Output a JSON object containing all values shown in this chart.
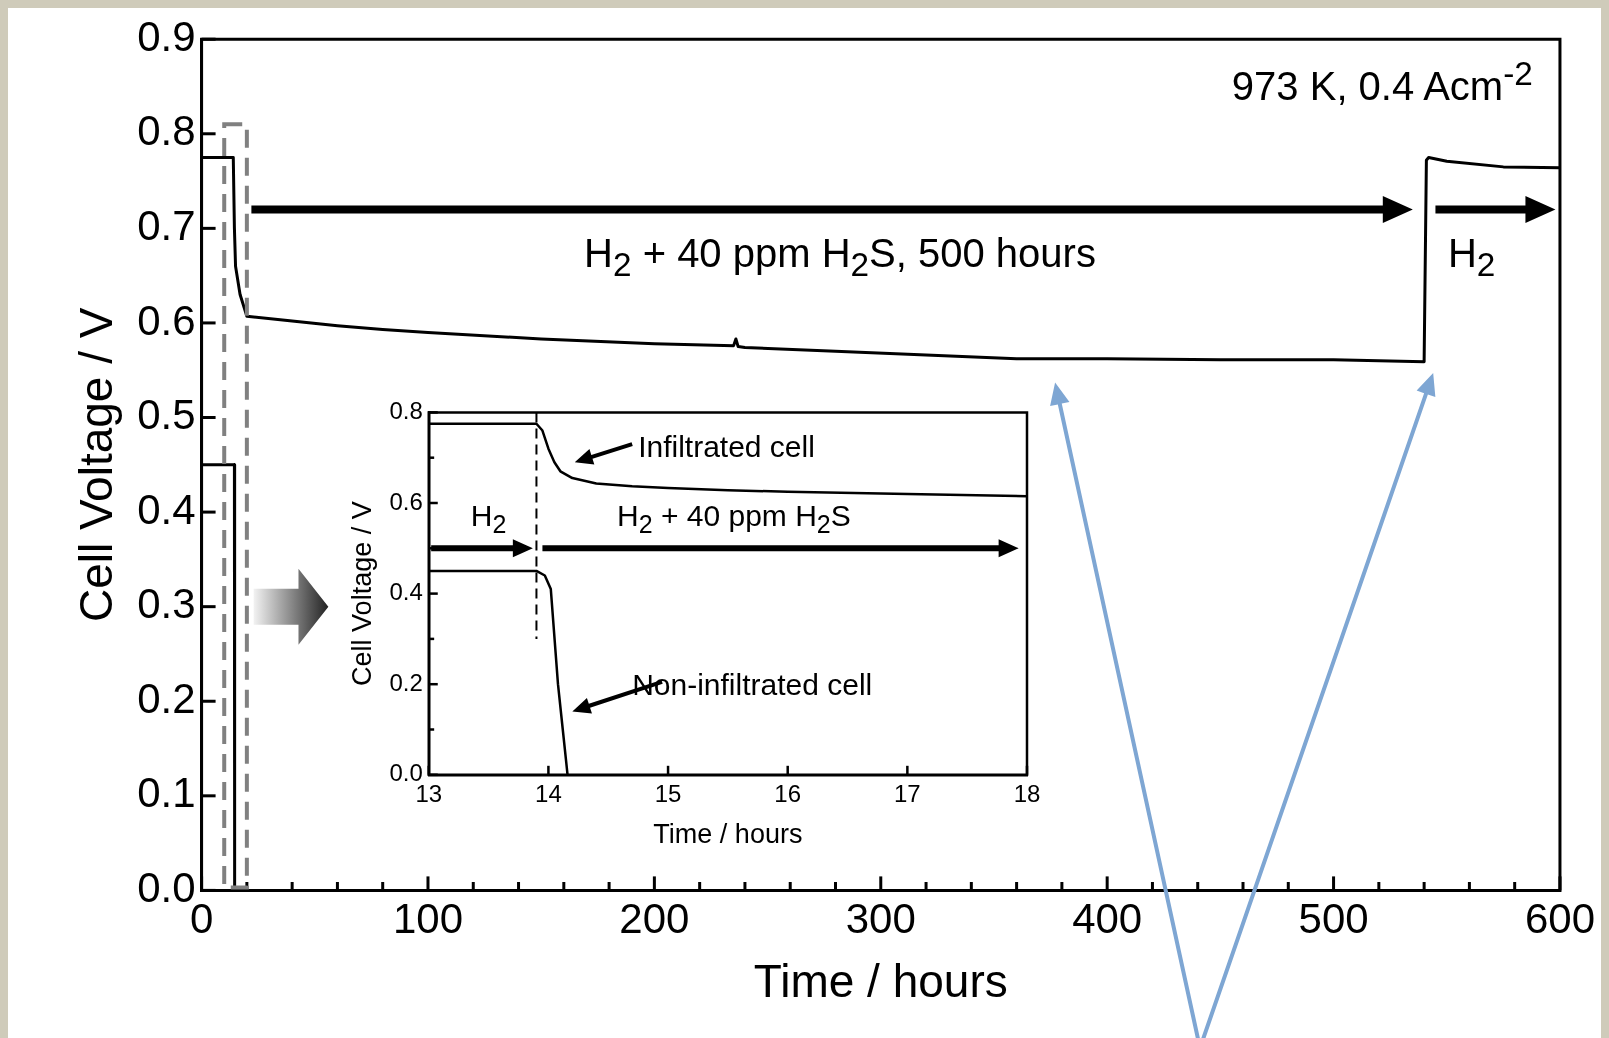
{
  "chart_data": [
    {
      "type": "line",
      "xlabel": "Time / hours",
      "ylabel": "Cell Voltage / V",
      "xlim": [
        0,
        600
      ],
      "ylim": [
        0,
        0.9
      ],
      "xticks": [
        0,
        {
          "value": 20,
          "label": null
        },
        {
          "value": 40,
          "label": null
        },
        {
          "value": 60,
          "label": null
        },
        {
          "value": 80,
          "label": null
        },
        100,
        {
          "value": 120,
          "label": null
        },
        {
          "value": 140,
          "label": null
        },
        {
          "value": 160,
          "label": null
        },
        {
          "value": 180,
          "label": null
        },
        200,
        {
          "value": 220,
          "label": null
        },
        {
          "value": 240,
          "label": null
        },
        {
          "value": 260,
          "label": null
        },
        {
          "value": 280,
          "label": null
        },
        300,
        {
          "value": 320,
          "label": null
        },
        {
          "value": 340,
          "label": null
        },
        {
          "value": 360,
          "label": null
        },
        {
          "value": 380,
          "label": null
        },
        400,
        {
          "value": 420,
          "label": null
        },
        {
          "value": 440,
          "label": null
        },
        {
          "value": 460,
          "label": null
        },
        {
          "value": 480,
          "label": null
        },
        500,
        {
          "value": 520,
          "label": null
        },
        {
          "value": 540,
          "label": null
        },
        {
          "value": 560,
          "label": null
        },
        {
          "value": 580,
          "label": null
        },
        600
      ],
      "yticks": [
        {
          "value": 0,
          "label": "0.0"
        },
        0.1,
        0.2,
        0.3,
        0.4,
        0.5,
        0.6,
        0.7,
        0.8,
        0.9
      ],
      "series": [
        {
          "color": "#000000",
          "x": [
            0,
            14,
            14.5,
            15,
            17,
            20,
            40,
            60,
            80,
            100,
            150,
            200,
            235,
            236,
            237,
            240,
            280,
            320,
            360,
            400,
            450,
            500,
            540,
            541,
            542,
            550,
            575,
            600
          ],
          "values": [
            0.775,
            0.775,
            0.7,
            0.66,
            0.63,
            0.607,
            0.602,
            0.597,
            0.593,
            0.59,
            0.583,
            0.578,
            0.576,
            0.583,
            0.575,
            0.574,
            0.57,
            0.566,
            0.562,
            0.562,
            0.561,
            0.561,
            0.559,
            0.772,
            0.775,
            0.771,
            0.765,
            0.764
          ]
        },
        {
          "color": "#000000",
          "x": [
            0,
            14.5,
            14.6
          ],
          "values": [
            0.45,
            0.45,
            0
          ]
        }
      ],
      "annotations": [
        "973 K, 0.4 Acm$^{-2}$",
        "H$_{2}$ + 40 ppm H$_{2}$S, 500 hours",
        "H$_{2}$"
      ],
      "legend": false,
      "grid": false,
      "marker": "none",
      "line_style": "solid"
    },
    {
      "type": "line",
      "xlabel": "Time / hours",
      "ylabel": "Cell Voltage / V",
      "xlim": [
        13,
        18
      ],
      "ylim": [
        0,
        0.8
      ],
      "xticks": [
        13,
        14,
        15,
        16,
        17,
        18
      ],
      "yticks": [
        {
          "value": 0,
          "label": "0.0"
        },
        {
          "value": 0.1,
          "label": null
        },
        0.2,
        {
          "value": 0.3,
          "label": null
        },
        0.4,
        {
          "value": 0.5,
          "label": null
        },
        0.6,
        {
          "value": 0.7,
          "label": null
        },
        0.8
      ],
      "series": [
        {
          "color": "#000000",
          "x": [
            13,
            13.9,
            13.95,
            14.0,
            14.05,
            14.1,
            14.2,
            14.4,
            14.7,
            15,
            15.5,
            16,
            17,
            18
          ],
          "values": [
            0.775,
            0.775,
            0.76,
            0.72,
            0.69,
            0.67,
            0.655,
            0.643,
            0.637,
            0.633,
            0.628,
            0.625,
            0.62,
            0.615
          ]
        },
        {
          "color": "#000000",
          "x": [
            13,
            13.9,
            13.97,
            14.02,
            14.08,
            14.12,
            14.16
          ],
          "values": [
            0.45,
            0.45,
            0.44,
            0.41,
            0.2,
            0.1,
            0
          ]
        }
      ],
      "ref_lines": [
        {
          "axis": "x",
          "value": 13.9,
          "line_style": "dashed"
        }
      ],
      "annotations": [
        "Infiltrated cell",
        "Non-infiltrated cell",
        "H$_{2}$",
        "H$_{2}$ + 40 ppm H$_{2}$S"
      ],
      "legend": false,
      "grid": false,
      "marker": "none",
      "line_style": "solid"
    }
  ]
}
